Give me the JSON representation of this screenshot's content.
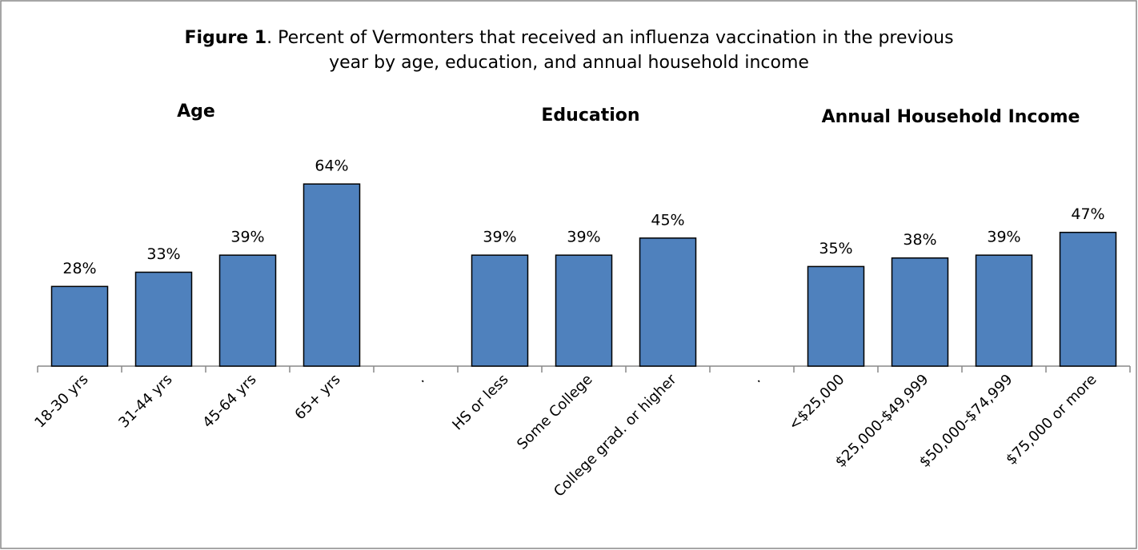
{
  "chart_data": {
    "type": "bar",
    "title": [
      "Figure 1",
      ". Percent of Vermonters that received an influenza vaccination in the previous",
      "year by age, education, and annual household income"
    ],
    "group_labels": [
      "Age",
      "Education",
      "Annual Household Income"
    ],
    "categories": [
      "18-30 yrs",
      "31-44 yrs",
      "45-64 yrs",
      "65+ yrs",
      ".",
      "HS or less",
      "Some College",
      "College grad. or higher",
      ".",
      "<$25,000",
      "$25,000-$49,999",
      "$50,000-$74,999",
      "$75,000 or more"
    ],
    "values": [
      28,
      33,
      39,
      64,
      null,
      39,
      39,
      45,
      null,
      35,
      38,
      39,
      47
    ],
    "value_labels": [
      "28%",
      "33%",
      "39%",
      "64%",
      null,
      "39%",
      "39%",
      "45%",
      null,
      "35%",
      "38%",
      "39%",
      "47%"
    ],
    "color": "#4f81bd",
    "ylim": [
      0,
      100
    ]
  }
}
